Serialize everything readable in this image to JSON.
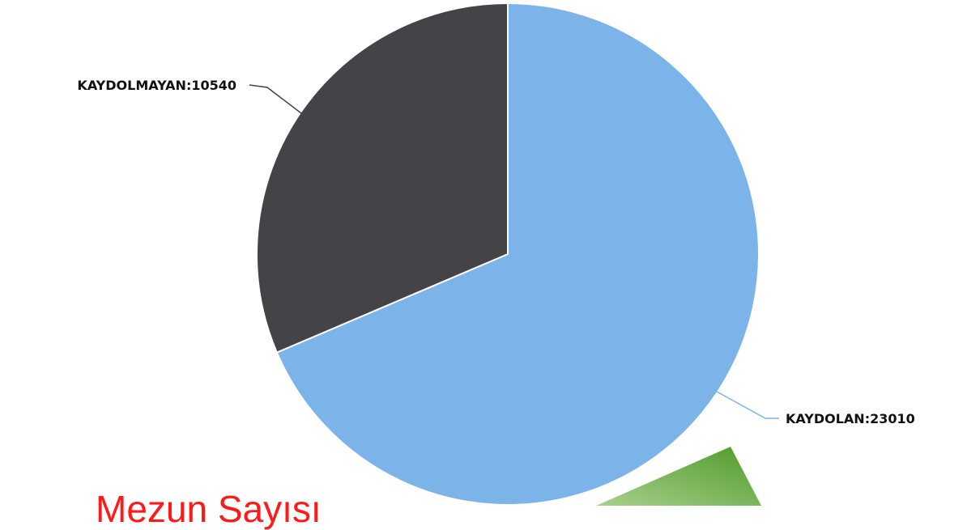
{
  "chart_data": {
    "type": "pie",
    "title": "",
    "slices": [
      {
        "label": "KAYDOLAN",
        "value": 23010,
        "display": "KAYDOLAN:23010",
        "color": "#7cb4ea"
      },
      {
        "label": "KAYDOLMAYAN",
        "value": 10540,
        "display": "KAYDOLMAYAN:10540",
        "color": "#434348"
      }
    ],
    "start_angle_deg": 0,
    "direction": "clockwise",
    "legend": "none"
  },
  "caption": {
    "text": "Mezun Sayısı",
    "color": "#ff1a1a"
  },
  "decoration": {
    "shape_color_light": "#a8d08d",
    "shape_color_dark": "#4e9a28"
  }
}
